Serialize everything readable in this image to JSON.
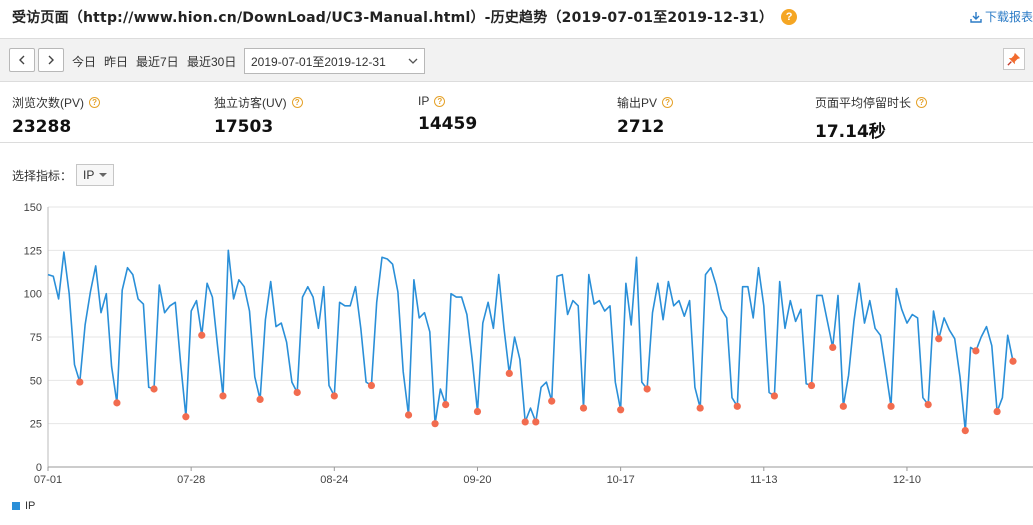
{
  "header": {
    "title": "受访页面（http://www.hion.cn/DownLoad/UC3-Manual.html）-历史趋势（2019-07-01至2019-12-31）",
    "help": "?",
    "download_label": "下载报表"
  },
  "toolbar": {
    "quick_ranges": [
      "今日",
      "昨日",
      "最近7日",
      "最近30日"
    ],
    "date_range": "2019-07-01至2019-12-31"
  },
  "stats": [
    {
      "label": "浏览次数(PV)",
      "value": "23288"
    },
    {
      "label": "独立访客(UV)",
      "value": "17503"
    },
    {
      "label": "IP",
      "value": "14459"
    },
    {
      "label": "输出PV",
      "value": "2712"
    },
    {
      "label": "页面平均停留时长",
      "value": "17.14秒"
    }
  ],
  "metric_selector": {
    "label": "选择指标：",
    "value": "IP"
  },
  "chart_data": {
    "type": "line",
    "ylim": [
      0,
      150
    ],
    "yticks": [
      0,
      25,
      50,
      75,
      100,
      125,
      150
    ],
    "xtick_labels": [
      "07-01",
      "07-28",
      "08-24",
      "09-20",
      "10-17",
      "11-13",
      "12-10"
    ],
    "grid": true,
    "legend_position": "bottom-left",
    "series": [
      {
        "name": "IP",
        "color": "#2a8fd8",
        "marker_color": "#f26c4f",
        "values": [
          111,
          110,
          97,
          124,
          100,
          59,
          49,
          82,
          101,
          116,
          89,
          100,
          58,
          37,
          102,
          115,
          111,
          97,
          94,
          46,
          45,
          105,
          89,
          93,
          95,
          60,
          29,
          90,
          96,
          76,
          106,
          98,
          69,
          41,
          125,
          97,
          108,
          104,
          90,
          52,
          39,
          85,
          107,
          81,
          83,
          72,
          49,
          43,
          98,
          104,
          98,
          80,
          104,
          47,
          41,
          95,
          93,
          93,
          104,
          80,
          49,
          47,
          95,
          121,
          120,
          117,
          101,
          55,
          30,
          108,
          86,
          89,
          78,
          25,
          45,
          36,
          100,
          98,
          98,
          88,
          62,
          32,
          83,
          95,
          80,
          111,
          80,
          54,
          75,
          62,
          26,
          34,
          26,
          46,
          49,
          38,
          110,
          111,
          88,
          96,
          93,
          34,
          111,
          94,
          96,
          90,
          93,
          49,
          33,
          106,
          82,
          121,
          49,
          45,
          89,
          106,
          85,
          107,
          93,
          96,
          87,
          96,
          46,
          34,
          111,
          115,
          105,
          91,
          86,
          40,
          35,
          104,
          104,
          86,
          115,
          93,
          43,
          41,
          107,
          80,
          96,
          84,
          91,
          48,
          47,
          99,
          99,
          84,
          69,
          99,
          35,
          53,
          84,
          106,
          83,
          96,
          80,
          76,
          56,
          35,
          103,
          91,
          83,
          88,
          86,
          40,
          36,
          90,
          74,
          86,
          79,
          74,
          52,
          21,
          69,
          67,
          75,
          81,
          70,
          32,
          40,
          76,
          61
        ]
      }
    ]
  }
}
